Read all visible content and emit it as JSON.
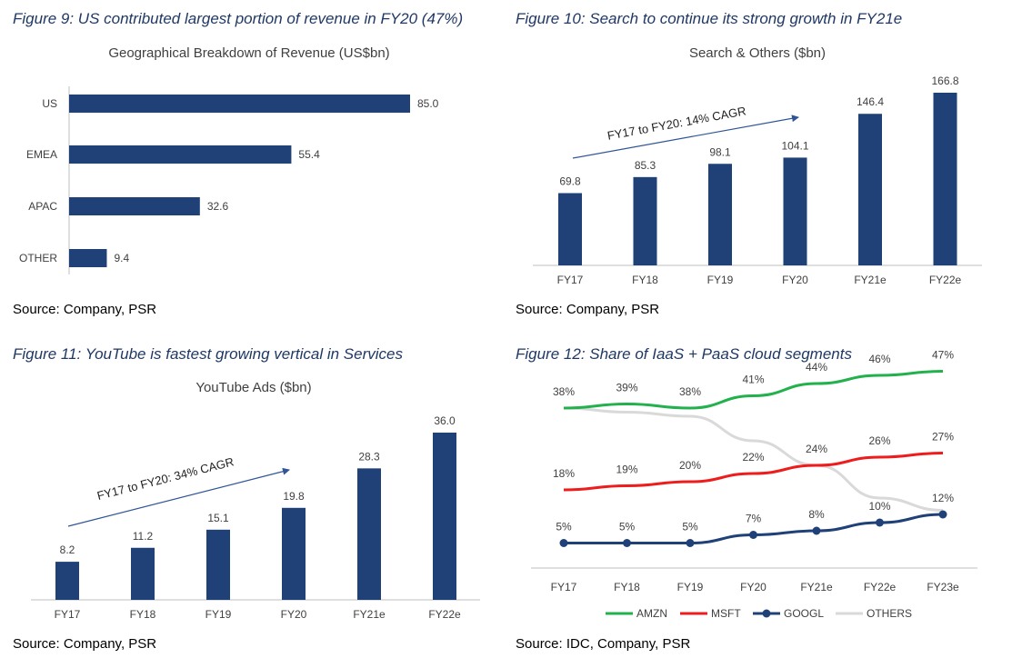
{
  "colors": {
    "bar": "#1f4178",
    "axis": "#bfbfbf",
    "AMZN": "#22b14c",
    "MSFT": "#ee1c1c",
    "GOOGL": "#1f4178",
    "OTHERS": "#d9d9d9"
  },
  "fig9": {
    "caption": "Figure 9: US contributed largest portion of revenue in FY20 (47%)",
    "source": "Source: Company, PSR"
  },
  "fig10": {
    "caption": "Figure 10: Search to continue its strong growth in FY21e",
    "source": "Source: Company, PSR",
    "annotation": "FY17 to FY20: 14% CAGR"
  },
  "fig11": {
    "caption": "Figure 11: YouTube is fastest growing vertical in Services",
    "source": "Source: Company, PSR",
    "annotation": "FY17 to FY20: 34% CAGR"
  },
  "fig12": {
    "caption": "Figure 12: Share of IaaS + PaaS cloud segments",
    "source": "Source: IDC, Company, PSR"
  },
  "chart_data": [
    {
      "type": "bar",
      "orientation": "horizontal",
      "title": "Geographical Breakdown of Revenue (US$bn)",
      "categories": [
        "US",
        "EMEA",
        "APAC",
        "OTHER"
      ],
      "values": [
        85.0,
        55.4,
        32.6,
        9.4
      ],
      "value_labels": [
        "85.0",
        "55.4",
        "32.6",
        "9.4"
      ],
      "xlim": [
        0,
        85
      ],
      "grid": false
    },
    {
      "type": "bar",
      "title": "Search & Others ($bn)",
      "categories": [
        "FY17",
        "FY18",
        "FY19",
        "FY20",
        "FY21e",
        "FY22e"
      ],
      "values": [
        69.8,
        85.3,
        98.1,
        104.1,
        146.4,
        166.8
      ],
      "value_labels": [
        "69.8",
        "85.3",
        "98.1",
        "104.1",
        "146.4",
        "166.8"
      ],
      "ylim": [
        0,
        166.8
      ],
      "grid": false
    },
    {
      "type": "bar",
      "title": "YouTube Ads ($bn)",
      "categories": [
        "FY17",
        "FY18",
        "FY19",
        "FY20",
        "FY21e",
        "FY22e"
      ],
      "values": [
        8.2,
        11.2,
        15.1,
        19.8,
        28.3,
        36.0
      ],
      "value_labels": [
        "8.2",
        "11.2",
        "15.1",
        "19.8",
        "28.3",
        "36.0"
      ],
      "ylim": [
        0,
        36.0
      ],
      "grid": false
    },
    {
      "type": "line",
      "title": "",
      "categories": [
        "FY17",
        "FY18",
        "FY19",
        "FY20",
        "FY21e",
        "FY22e",
        "FY23e"
      ],
      "ylim": [
        0,
        50
      ],
      "legend": "bottom",
      "grid": false,
      "series": [
        {
          "name": "AMZN",
          "values": [
            38,
            39,
            38,
            41,
            44,
            46,
            47
          ],
          "labels": [
            "38%",
            "39%",
            "38%",
            "41%",
            "44%",
            "46%",
            "47%"
          ]
        },
        {
          "name": "MSFT",
          "values": [
            18,
            19,
            20,
            22,
            24,
            26,
            27
          ],
          "labels": [
            "18%",
            "19%",
            "20%",
            "22%",
            "24%",
            "26%",
            "27%"
          ]
        },
        {
          "name": "GOOGL",
          "values": [
            5,
            5,
            5,
            7,
            8,
            10,
            12
          ],
          "labels": [
            "5%",
            "5%",
            "5%",
            "7%",
            "8%",
            "10%",
            "12%"
          ]
        },
        {
          "name": "OTHERS",
          "values": [
            38,
            37,
            36,
            30,
            24,
            16,
            13
          ],
          "labels": []
        }
      ]
    }
  ]
}
